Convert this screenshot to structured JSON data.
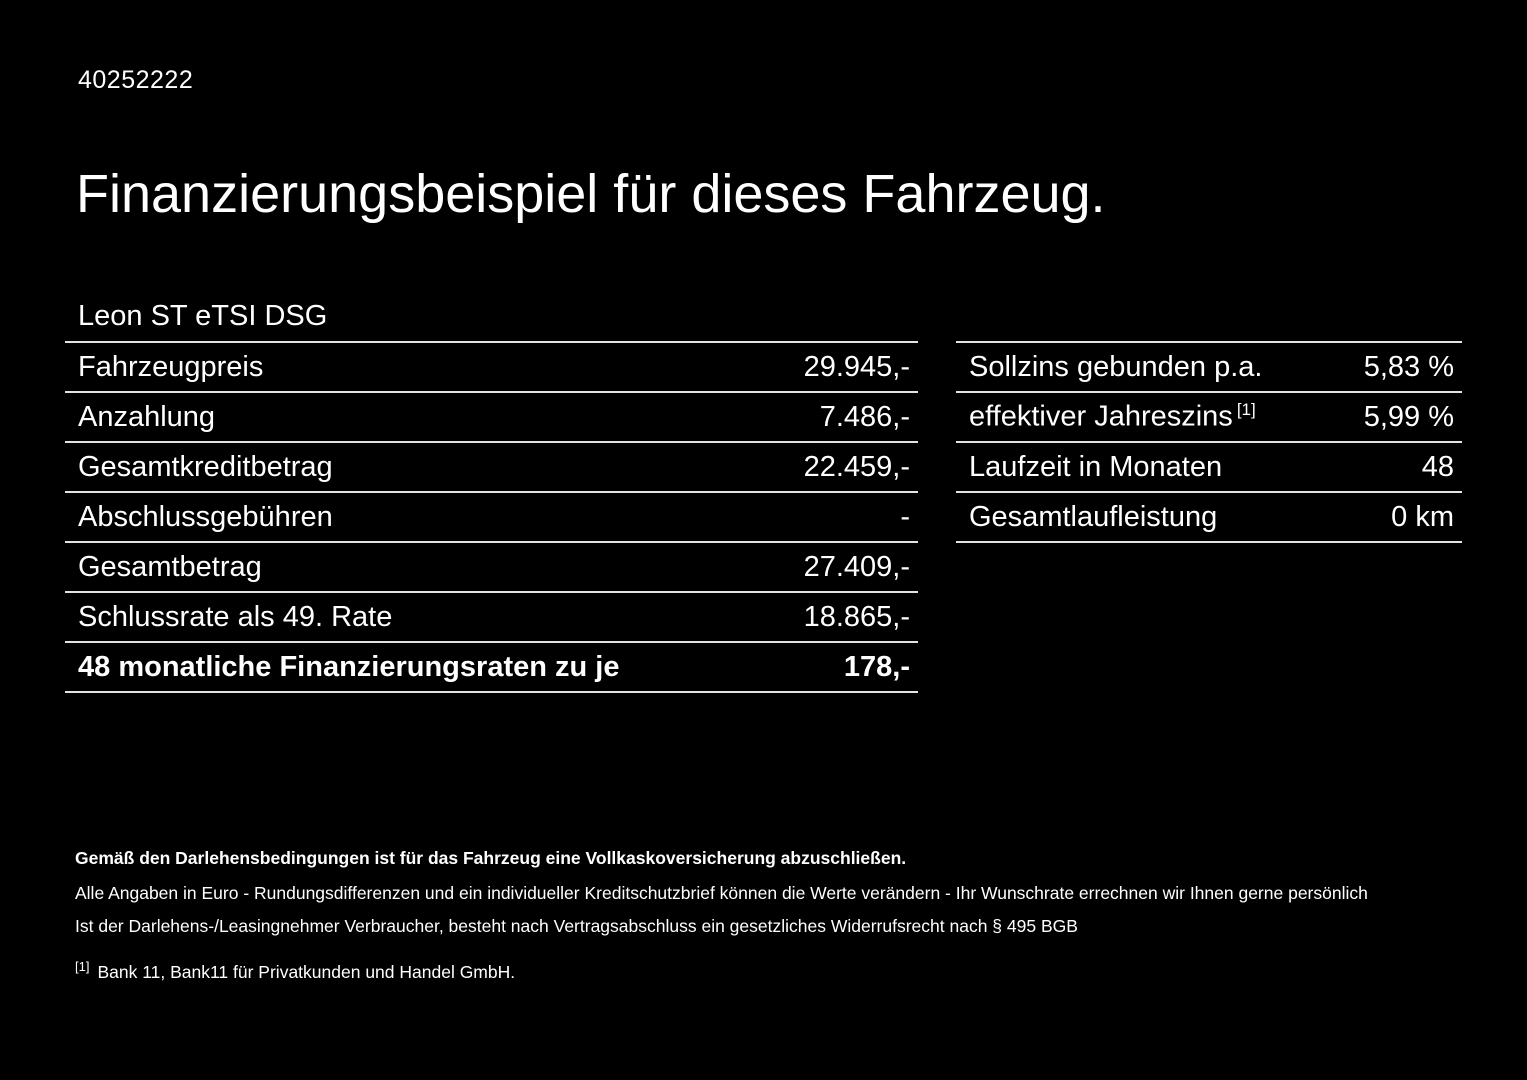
{
  "page": {
    "ref_number": "40252222",
    "title": "Finanzierungsbeispiel für dieses Fahrzeug.",
    "model": "Leon ST eTSI DSG"
  },
  "left_table": {
    "rows": [
      {
        "label": "Fahrzeugpreis",
        "value": "29.945,-"
      },
      {
        "label": "Anzahlung",
        "value": "7.486,-"
      },
      {
        "label": "Gesamtkreditbetrag",
        "value": "22.459,-"
      },
      {
        "label": "Abschlussgebühren",
        "value": "-"
      },
      {
        "label": "Gesamtbetrag",
        "value": "27.409,-"
      },
      {
        "label": "Schlussrate als 49. Rate",
        "value": "18.865,-"
      },
      {
        "label": "48 monatliche Finanzierungsraten zu je",
        "value": "178,-"
      }
    ]
  },
  "right_table": {
    "rows": [
      {
        "label": "Sollzins gebunden p.a.",
        "sup": "",
        "value": "5,83 %"
      },
      {
        "label": "effektiver Jahreszins",
        "sup": "[1]",
        "value": "5,99 %"
      },
      {
        "label": "Laufzeit in Monaten",
        "sup": "",
        "value": "48"
      },
      {
        "label": "Gesamtlaufleistung",
        "sup": "",
        "value": "0 km"
      }
    ]
  },
  "footnotes": {
    "bold_line": "Gemäß den Darlehensbedingungen ist für das Fahrzeug eine Vollkaskoversicherung abzuschließen.",
    "line1": "Alle Angaben in Euro - Rundungsdifferenzen und ein individueller Kreditschutzbrief können die Werte verändern - Ihr Wunschrate errechnen wir Ihnen gerne persönlich",
    "line2": "Ist der Darlehens-/Leasingnehmer Verbraucher, besteht nach Vertragsabschluss ein gesetzliches Widerrufsrecht nach § 495 BGB",
    "ref_marker": "[1]",
    "ref_text": "Bank 11, Bank11 für Privatkunden und Handel GmbH."
  }
}
